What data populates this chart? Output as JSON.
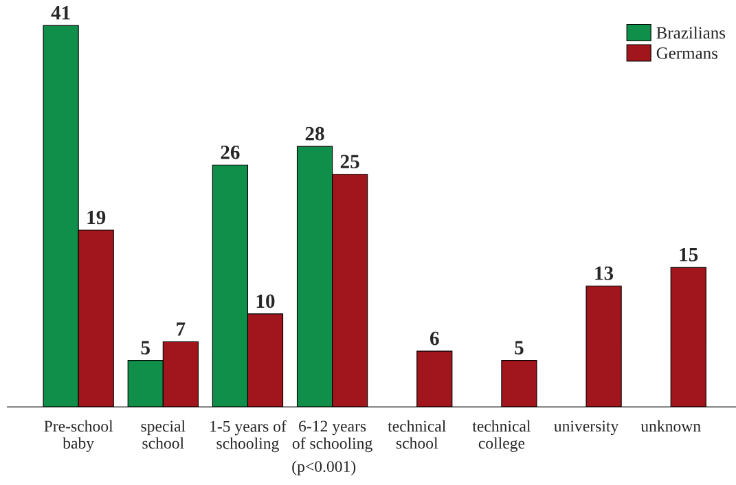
{
  "chart_data": {
    "type": "bar",
    "categories": [
      "Pre-school\nbaby",
      "special\nschool",
      "1-5 years of\nschooling",
      "6-12 years\nof schooling",
      "technical\nschool",
      "technical\ncollege",
      "university",
      "unknown"
    ],
    "series": [
      {
        "name": "Brazilians",
        "color": "#0f8f4a",
        "values": [
          41,
          5,
          26,
          28,
          null,
          null,
          null,
          null
        ]
      },
      {
        "name": "Germans",
        "color": "#a0161c",
        "values": [
          19,
          7,
          10,
          25,
          6,
          5,
          13,
          15
        ]
      }
    ],
    "data_labels": true,
    "legend": "top right",
    "grid": false,
    "annotations": [
      "(p<0.001)"
    ]
  }
}
